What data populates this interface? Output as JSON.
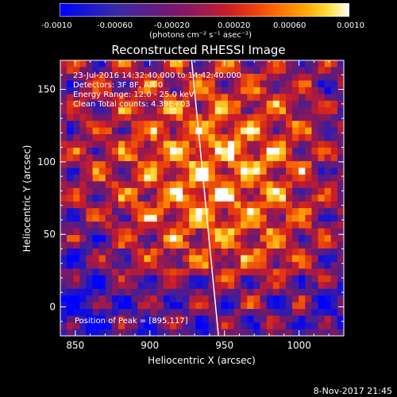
{
  "colorbar": {
    "ticks": [
      "-0.0010",
      "-0.00060",
      "-0.00020",
      "0.00020",
      "0.00060",
      "0.0010"
    ],
    "unit_label": "(photons cm⁻² s⁻¹ asec⁻²)",
    "range": [
      -0.001,
      0.001
    ]
  },
  "chart_data": {
    "type": "heatmap",
    "title": "Reconstructed RHESSI Image",
    "xlabel": "Heliocentric X (arcsec)",
    "ylabel": "Heliocentric Y (arcsec)",
    "xlim": [
      840,
      1030
    ],
    "ylim": [
      -20,
      170
    ],
    "xticks": [
      850,
      900,
      950,
      1000
    ],
    "yticks": [
      0,
      50,
      100,
      150
    ],
    "limb_line": {
      "x": [
        928,
        946
      ],
      "y": [
        170,
        -20
      ]
    },
    "peak": {
      "x": 895,
      "y": 117
    }
  },
  "info_lines": [
    "23-Jul-2016 14:32:40.000 to 14:42:40.000",
    "Detectors: 3F 8F, Att 0",
    "Energy Range: 12.0 - 25.0 keV",
    "Clean     Total counts: 4.39E+03"
  ],
  "peak_label": "Position of Peak = [895,117]",
  "footer_date": "8-Nov-2017 21:45"
}
